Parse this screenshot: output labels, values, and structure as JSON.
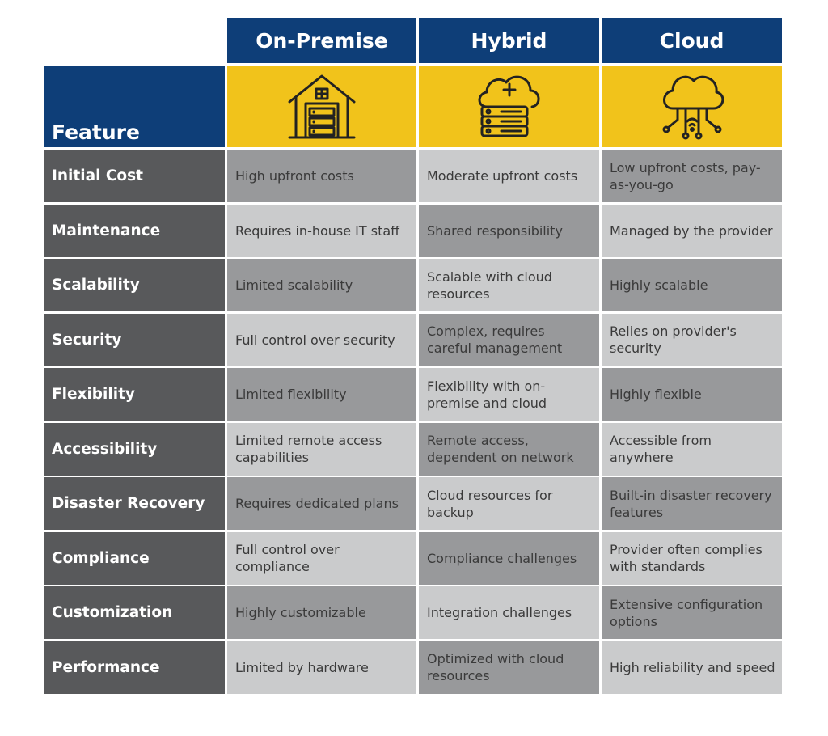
{
  "columns": [
    {
      "label": "On-Premise",
      "icon": "house-server-icon"
    },
    {
      "label": "Hybrid",
      "icon": "cloud-server-plus-icon"
    },
    {
      "label": "Cloud",
      "icon": "cloud-network-icon"
    }
  ],
  "feature_header": "Feature",
  "colors": {
    "navy": "#0e3e78",
    "yellow": "#f1c31b",
    "label_gray": "#58595b",
    "cell_dark": "#98999b",
    "cell_light": "#cacbcc"
  },
  "rows": [
    {
      "feature": "Initial Cost",
      "on_premise": "High upfront costs",
      "hybrid": "Moderate upfront costs",
      "cloud": "Low upfront costs, pay-as-you-go"
    },
    {
      "feature": "Maintenance",
      "on_premise": "Requires in-house IT staff",
      "hybrid": "Shared responsibility",
      "cloud": "Managed by the provider"
    },
    {
      "feature": "Scalability",
      "on_premise": "Limited scalability",
      "hybrid": "Scalable with cloud resources",
      "cloud": "Highly scalable"
    },
    {
      "feature": "Security",
      "on_premise": "Full control over security",
      "hybrid": "Complex, requires careful management",
      "cloud": "Relies on provider's security"
    },
    {
      "feature": "Flexibility",
      "on_premise": "Limited flexibility",
      "hybrid": "Flexibility with on-premise and cloud",
      "cloud": "Highly flexible"
    },
    {
      "feature": "Accessibility",
      "on_premise": "Limited remote access capabilities",
      "hybrid": "Remote access, dependent on network",
      "cloud": "Accessible from anywhere"
    },
    {
      "feature": "Disaster Recovery",
      "on_premise": "Requires dedicated plans",
      "hybrid": "Cloud resources for backup",
      "cloud": "Built-in disaster recovery features"
    },
    {
      "feature": "Compliance",
      "on_premise": "Full control over compliance",
      "hybrid": "Compliance challenges",
      "cloud": "Provider often complies with standards"
    },
    {
      "feature": "Customization",
      "on_premise": "Highly customizable",
      "hybrid": "Integration challenges",
      "cloud": "Extensive configuration options"
    },
    {
      "feature": "Performance",
      "on_premise": "Limited by hardware",
      "hybrid": "Optimized with cloud resources",
      "cloud": "High reliability and speed"
    }
  ]
}
